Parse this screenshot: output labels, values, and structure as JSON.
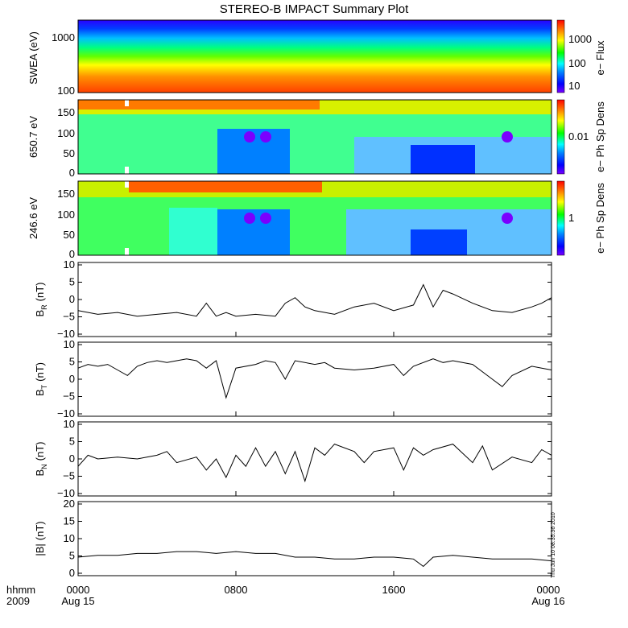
{
  "title": "STEREO-B IMPACT Summary Plot",
  "footer": {
    "left_line1": "hhmm",
    "left_line2": "2009",
    "x_ticks": [
      "0000",
      "0800",
      "1600",
      "0000"
    ],
    "x_dates": [
      "Aug 15",
      "Aug 16"
    ],
    "timestamp": "Thu Jun 10 08:35:36 2010"
  },
  "colors": {
    "trace": "#000000",
    "spectrogram_scale": [
      "#7a00ff",
      "#0000ff",
      "#0080ff",
      "#00ffff",
      "#00ff00",
      "#ffff00",
      "#ff8000",
      "#ff0000"
    ]
  },
  "chart_data": [
    {
      "type": "heatmap",
      "ylabel": "SWEA (eV)",
      "yscale": "log",
      "ylim": [
        100,
        2000
      ],
      "yticks": [
        "1000",
        "100"
      ],
      "colorbar": {
        "label": "e− Flux",
        "scale": "log",
        "ticks": [
          "1000",
          "100",
          "10"
        ]
      },
      "x": [
        "0000",
        "0800",
        "1600",
        "0000"
      ],
      "rows_energy_eV": [
        1800,
        1200,
        800,
        500,
        300,
        200,
        130,
        100
      ],
      "rows_color_level": [
        0.12,
        0.3,
        0.48,
        0.62,
        0.72,
        0.82,
        0.9,
        0.95
      ]
    },
    {
      "type": "heatmap",
      "ylabel": "650.7 eV",
      "ylim": [
        0,
        180
      ],
      "yticks": [
        "150",
        "100",
        "50",
        "0"
      ],
      "colorbar": {
        "label": "e− Ph Sp Dens",
        "scale": "log",
        "ticks": [
          "0.01"
        ]
      },
      "x": [
        "0000",
        "0800",
        "1600",
        "0000"
      ]
    },
    {
      "type": "heatmap",
      "ylabel": "246.6 eV",
      "ylim": [
        0,
        180
      ],
      "yticks": [
        "150",
        "100",
        "50",
        "0"
      ],
      "colorbar": {
        "label": "e− Ph Sp Dens",
        "scale": "log",
        "ticks": [
          "1"
        ]
      },
      "x": [
        "0000",
        "0800",
        "1600",
        "0000"
      ]
    },
    {
      "type": "line",
      "ylabel": "B_R (nT)",
      "ylabel_main": "B",
      "ylabel_sub": "R",
      "ylabel_unit": "(nT)",
      "ylim": [
        -10,
        10
      ],
      "yticks": [
        "10",
        "5",
        "0",
        "−5",
        "−10"
      ],
      "x_hours": [
        0,
        1,
        2,
        3,
        4,
        5,
        6,
        6.5,
        7,
        7.5,
        8,
        9,
        10,
        10.5,
        11,
        11.5,
        12,
        13,
        14,
        15,
        16,
        17,
        17.5,
        18,
        18.5,
        19,
        20,
        21,
        22,
        23,
        23.5,
        24
      ],
      "y": [
        -3,
        -4,
        -3.5,
        -4.5,
        -4,
        -3.5,
        -4.5,
        -1,
        -4.5,
        -3.5,
        -4.5,
        -4,
        -4.5,
        -1,
        0.5,
        -2,
        -3,
        -4,
        -2,
        -1,
        -3,
        -1.5,
        4,
        -2,
        2.5,
        1.5,
        -1,
        -3,
        -3.5,
        -2,
        -1,
        0.5
      ]
    },
    {
      "type": "line",
      "ylabel": "B_T (nT)",
      "ylabel_main": "B",
      "ylabel_sub": "T",
      "ylabel_unit": "(nT)",
      "ylim": [
        -10,
        10
      ],
      "yticks": [
        "10",
        "5",
        "0",
        "−5",
        "−10"
      ],
      "x_hours": [
        0,
        0.5,
        1,
        1.5,
        2,
        2.5,
        3,
        3.5,
        4,
        4.5,
        5,
        5.5,
        6,
        6.5,
        7,
        7.5,
        8,
        9,
        9.5,
        10,
        10.5,
        11,
        12,
        12.5,
        13,
        14,
        15,
        16,
        16.5,
        17,
        18,
        18.5,
        19,
        20,
        21,
        21.5,
        22,
        23,
        23.5,
        24
      ],
      "y": [
        3,
        4,
        3.5,
        4,
        2.5,
        1,
        3.5,
        4.5,
        5,
        4.5,
        5,
        5.5,
        5,
        3,
        5,
        -5,
        3,
        4,
        5,
        4.5,
        0,
        5,
        4,
        4.5,
        3,
        2.5,
        3,
        4,
        1,
        3.5,
        5.5,
        4.5,
        5,
        4,
        0,
        -2,
        1,
        3.5,
        3,
        2.5
      ]
    },
    {
      "type": "line",
      "ylabel": "B_N (nT)",
      "ylabel_main": "B",
      "ylabel_sub": "N",
      "ylabel_unit": "(nT)",
      "ylim": [
        -10,
        10
      ],
      "yticks": [
        "10",
        "5",
        "0",
        "−5",
        "−10"
      ],
      "x_hours": [
        0,
        0.5,
        1,
        2,
        3,
        4,
        4.5,
        5,
        6,
        6.5,
        7,
        7.5,
        8,
        8.5,
        9,
        9.5,
        10,
        10.5,
        11,
        11.5,
        12,
        12.5,
        13,
        14,
        14.5,
        15,
        16,
        16.5,
        17,
        17.5,
        18,
        19,
        20,
        20.5,
        21,
        22,
        23,
        23.5,
        24
      ],
      "y": [
        -2,
        1,
        0,
        0.5,
        0,
        1,
        2,
        -1,
        0.5,
        -3,
        0,
        -5,
        1,
        -2,
        3,
        -2,
        2,
        -4,
        2,
        -6,
        3,
        1,
        4,
        2,
        -1,
        2,
        3,
        -3,
        3,
        1,
        2.5,
        4,
        -1,
        3.5,
        -3,
        0.5,
        -1,
        2.5,
        1
      ]
    },
    {
      "type": "line",
      "ylabel": "|B| (nT)",
      "ylabel_main": "|B|",
      "ylabel_sub": "",
      "ylabel_unit": "(nT)",
      "ylim": [
        0,
        20
      ],
      "yticks": [
        "20",
        "15",
        "10",
        "5",
        "0"
      ],
      "x_hours": [
        0,
        1,
        2,
        3,
        4,
        5,
        6,
        7,
        8,
        9,
        10,
        11,
        12,
        13,
        14,
        15,
        16,
        17,
        17.5,
        18,
        19,
        20,
        21,
        22,
        23,
        24
      ],
      "y": [
        5,
        5.5,
        5.5,
        6,
        6,
        6.5,
        6.5,
        6,
        6.5,
        6,
        6,
        5,
        5,
        4.5,
        4.5,
        5,
        5,
        4.5,
        2.5,
        5,
        5.5,
        5,
        4.5,
        4.5,
        4.5,
        4
      ]
    }
  ]
}
